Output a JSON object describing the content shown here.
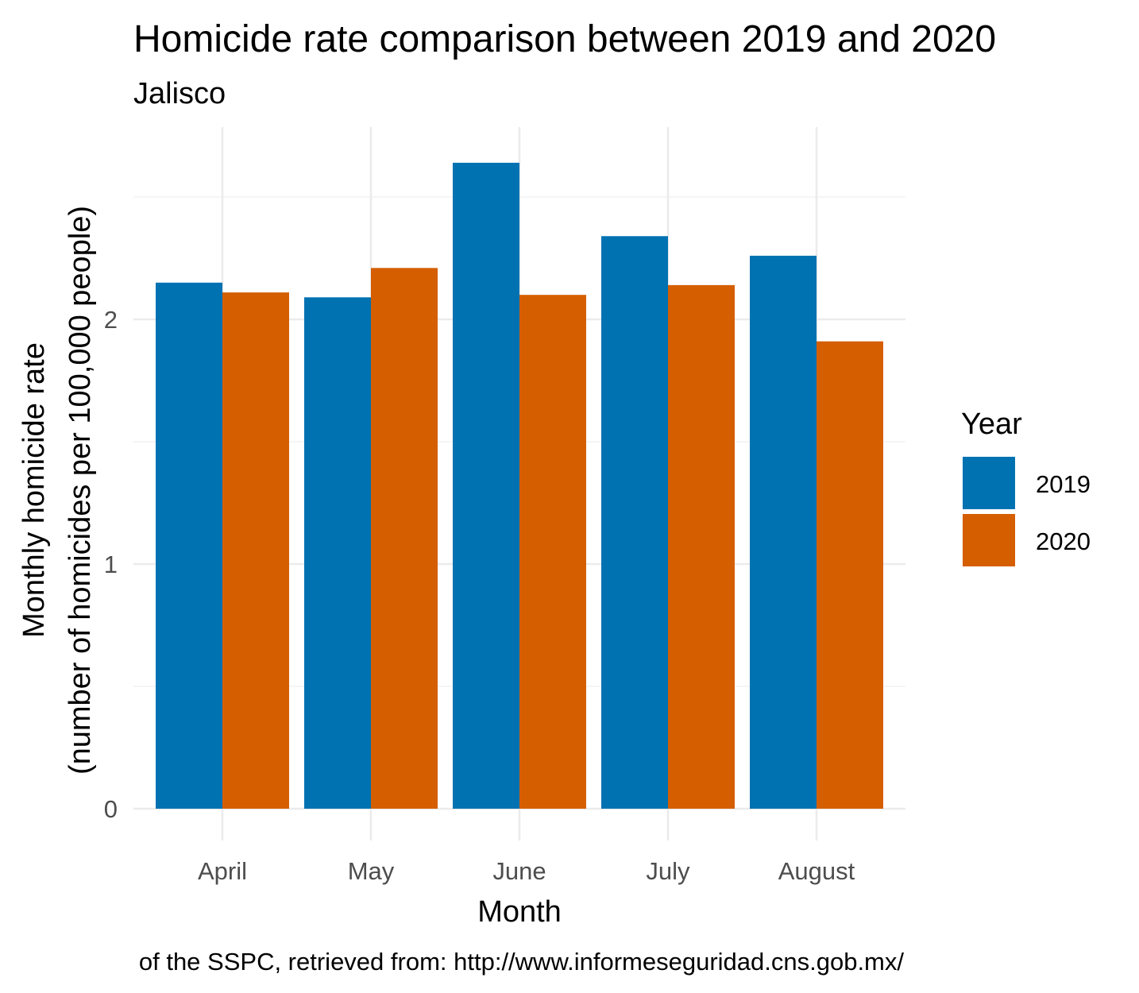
{
  "chart_data": {
    "type": "bar",
    "title": "Homicide rate comparison between 2019 and 2020",
    "subtitle": "Jalisco",
    "xlabel": "Month",
    "ylabel_line1": "Monthly homicide rate",
    "ylabel_line2": "(number of homicides per 100,000 people)",
    "categories": [
      "April",
      "May",
      "June",
      "July",
      "August"
    ],
    "series": [
      {
        "name": "2019",
        "color": "#0072B2",
        "values": [
          2.15,
          2.09,
          2.64,
          2.34,
          2.26
        ]
      },
      {
        "name": "2020",
        "color": "#D55E00",
        "values": [
          2.11,
          2.21,
          2.1,
          2.14,
          1.91
        ]
      }
    ],
    "ylim": [
      0,
      2.64
    ],
    "yticks": [
      0,
      1,
      2
    ],
    "y_minor_ticks": [
      0.5,
      1.5,
      2.5
    ],
    "grid": true,
    "legend": {
      "title": "Year",
      "position": "right"
    },
    "caption": "of the SSPC, retrieved from: http://www.informeseguridad.cns.gob.mx/"
  }
}
